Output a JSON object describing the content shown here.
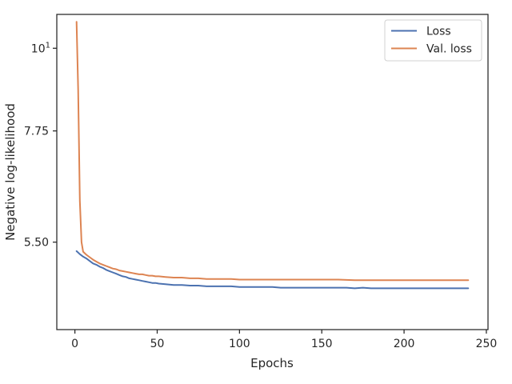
{
  "chart_data": {
    "type": "line",
    "title": "",
    "xlabel": "Epochs",
    "ylabel": "Negative log-likelihood",
    "yscale": "log",
    "xlim": [
      -11,
      251
    ],
    "ylim": [
      4.2,
      11.1
    ],
    "x_ticks": [
      {
        "value": 0,
        "label": "0"
      },
      {
        "value": 50,
        "label": "50"
      },
      {
        "value": 100,
        "label": "100"
      },
      {
        "value": 150,
        "label": "150"
      },
      {
        "value": 200,
        "label": "200"
      },
      {
        "value": 250,
        "label": "250"
      }
    ],
    "y_ticks": [
      {
        "value": 5.5,
        "label": "5.50"
      },
      {
        "value": 7.75,
        "label": "7.75"
      },
      {
        "value": 10,
        "label": "10",
        "exp": "1"
      }
    ],
    "grid": false,
    "legend_position": "top-right",
    "series": [
      {
        "name": "Loss",
        "color": "#4c72b0",
        "x": [
          1,
          3,
          5,
          7,
          9,
          11,
          13,
          15,
          17,
          19,
          21,
          23,
          25,
          27,
          29,
          31,
          33,
          35,
          37,
          39,
          41,
          43,
          45,
          47,
          49,
          51,
          55,
          60,
          65,
          70,
          75,
          80,
          85,
          90,
          95,
          100,
          105,
          110,
          115,
          120,
          125,
          130,
          135,
          140,
          145,
          150,
          155,
          160,
          165,
          170,
          175,
          180,
          185,
          190,
          195,
          200,
          205,
          210,
          215,
          220,
          225,
          230,
          235,
          239
        ],
        "y": [
          5.35,
          5.3,
          5.26,
          5.23,
          5.19,
          5.15,
          5.13,
          5.1,
          5.08,
          5.05,
          5.03,
          5.01,
          4.99,
          4.97,
          4.95,
          4.94,
          4.92,
          4.91,
          4.9,
          4.89,
          4.88,
          4.87,
          4.86,
          4.85,
          4.85,
          4.84,
          4.83,
          4.82,
          4.82,
          4.81,
          4.81,
          4.8,
          4.8,
          4.8,
          4.8,
          4.79,
          4.79,
          4.79,
          4.79,
          4.79,
          4.78,
          4.78,
          4.78,
          4.78,
          4.78,
          4.78,
          4.78,
          4.78,
          4.78,
          4.77,
          4.78,
          4.77,
          4.77,
          4.77,
          4.77,
          4.77,
          4.77,
          4.77,
          4.77,
          4.77,
          4.77,
          4.77,
          4.77,
          4.77
        ]
      },
      {
        "name": "Val. loss",
        "color": "#dd8452",
        "x": [
          1,
          2,
          3,
          4,
          5,
          7,
          9,
          11,
          13,
          15,
          17,
          19,
          21,
          23,
          25,
          27,
          29,
          31,
          33,
          35,
          37,
          39,
          41,
          43,
          45,
          47,
          49,
          51,
          55,
          60,
          65,
          70,
          75,
          80,
          85,
          90,
          95,
          100,
          110,
          120,
          130,
          140,
          150,
          160,
          170,
          180,
          190,
          200,
          210,
          220,
          230,
          239
        ],
        "y": [
          10.85,
          8.8,
          6.25,
          5.5,
          5.34,
          5.29,
          5.25,
          5.21,
          5.18,
          5.15,
          5.13,
          5.11,
          5.09,
          5.07,
          5.06,
          5.04,
          5.03,
          5.02,
          5.01,
          5.0,
          4.99,
          4.98,
          4.98,
          4.97,
          4.96,
          4.96,
          4.95,
          4.95,
          4.94,
          4.93,
          4.93,
          4.92,
          4.92,
          4.91,
          4.91,
          4.91,
          4.91,
          4.9,
          4.9,
          4.9,
          4.9,
          4.9,
          4.9,
          4.9,
          4.89,
          4.89,
          4.89,
          4.89,
          4.89,
          4.89,
          4.89,
          4.89
        ]
      }
    ]
  }
}
